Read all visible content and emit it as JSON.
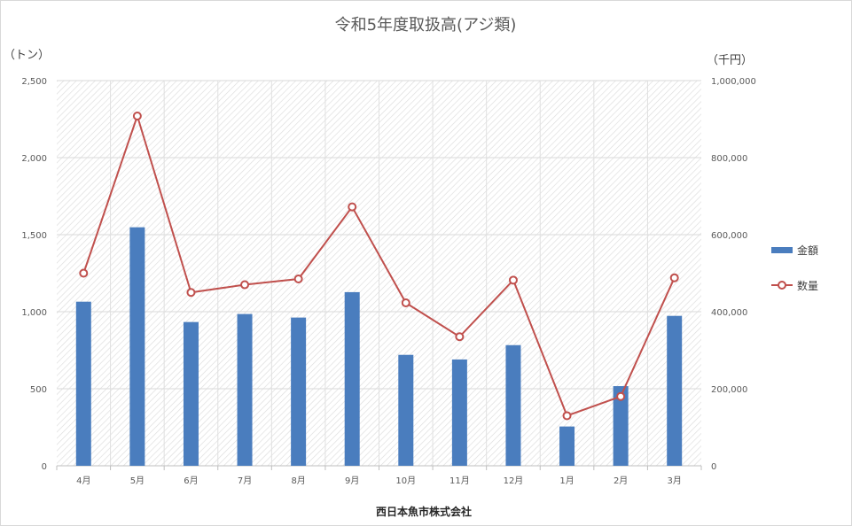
{
  "chart_data": {
    "type": "bar",
    "title": "令和5年度取扱高(アジ類)",
    "left_axis_unit": "（トン）",
    "right_axis_unit": "（千円）",
    "footer": "西日本魚市株式会社",
    "categories": [
      "4月",
      "5月",
      "6月",
      "7月",
      "8月",
      "9月",
      "10月",
      "11月",
      "12月",
      "1月",
      "2月",
      "3月"
    ],
    "left_axis": {
      "min": 0,
      "max": 2500,
      "ticks": [
        "0",
        "500",
        "1,000",
        "1,500",
        "2,000",
        "2,500"
      ]
    },
    "right_axis": {
      "min": 0,
      "max": 1000000,
      "ticks": [
        "0",
        "200,000",
        "400,000",
        "600,000",
        "800,000",
        "1,000,000"
      ]
    },
    "series": [
      {
        "name": "金額",
        "type": "bar",
        "axis": "left",
        "color": "#4a7dbe",
        "values": [
          1065,
          1548,
          933,
          985,
          962,
          1127,
          720,
          690,
          783,
          255,
          517,
          973
        ]
      },
      {
        "name": "数量",
        "type": "line",
        "axis": "right",
        "color": "#c0504d",
        "values": [
          500000,
          908000,
          450000,
          470000,
          485000,
          672000,
          423000,
          335000,
          482000,
          130000,
          180000,
          488000
        ]
      }
    ],
    "grid": true,
    "legend_position": "right"
  }
}
